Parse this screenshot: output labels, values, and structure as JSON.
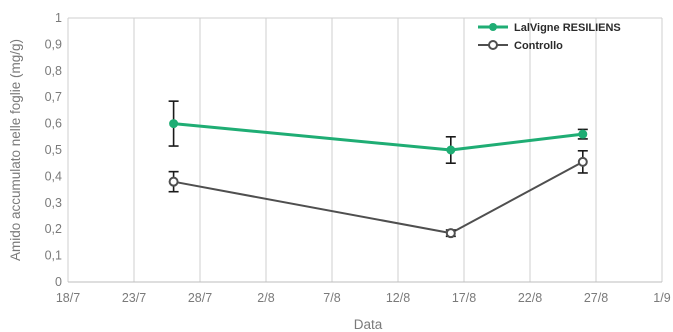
{
  "chart_data": {
    "type": "line",
    "xlabel": "Data",
    "ylabel": "Amido accumulato nelle foglie (mg/g)",
    "x_ticks": [
      "18/7",
      "23/7",
      "28/7",
      "2/8",
      "7/8",
      "12/8",
      "17/8",
      "22/8",
      "27/8",
      "1/9"
    ],
    "y_ticks": [
      "0",
      "0,1",
      "0,2",
      "0,3",
      "0,4",
      "0,5",
      "0,6",
      "0,7",
      "0,8",
      "0,9",
      "1"
    ],
    "ylim": [
      0,
      1
    ],
    "xlim": [
      "18/7",
      "1/9"
    ],
    "grid": "vertical",
    "legend_position": "top-right",
    "series": [
      {
        "name": "LalVigne RESILIENS",
        "color": "#1fad74",
        "marker": "filled-circle",
        "points": [
          {
            "x": "26/7",
            "y": 0.6,
            "err": 0.085
          },
          {
            "x": "16/8",
            "y": 0.5,
            "err": 0.05
          },
          {
            "x": "26/8",
            "y": 0.56,
            "err": 0.018
          }
        ]
      },
      {
        "name": "Controllo",
        "color": "#4f4f4f",
        "marker": "open-circle",
        "points": [
          {
            "x": "26/7",
            "y": 0.38,
            "err": 0.038
          },
          {
            "x": "16/8",
            "y": 0.185,
            "err": 0.012
          },
          {
            "x": "26/8",
            "y": 0.455,
            "err": 0.042
          }
        ]
      }
    ]
  }
}
